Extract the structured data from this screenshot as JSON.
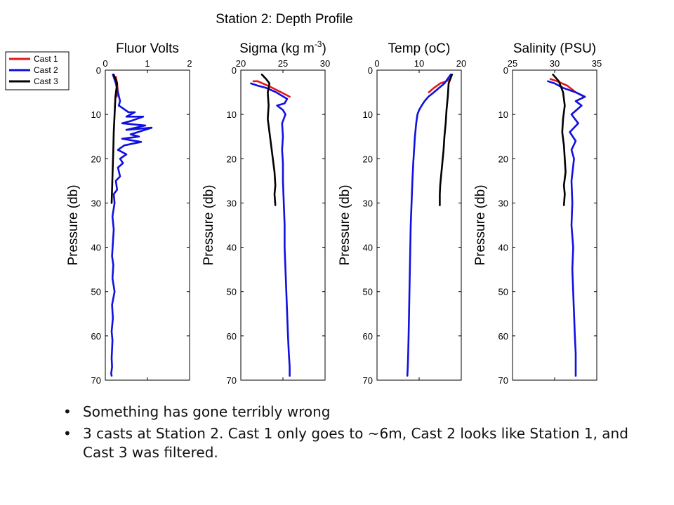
{
  "title": "Station 2: Depth Profile",
  "legend": [
    {
      "name": "Cast 1",
      "color": "#e8141c"
    },
    {
      "name": "Cast 2",
      "color": "#1010e0"
    },
    {
      "name": "Cast 3",
      "color": "#000000"
    }
  ],
  "bullets": [
    "Something has gone terribly wrong",
    "3 casts at Station 2. Cast 1 only goes to ~6m, Cast 2 looks like Station 1, and Cast 3 was filtered."
  ],
  "chart_data": [
    {
      "type": "line",
      "title": "Fluor Volts",
      "ylabel": "Pressure (db)",
      "xlim": [
        0,
        2
      ],
      "xticks": [
        0,
        1,
        2
      ],
      "ylim": [
        0,
        70
      ],
      "yticks": [
        0,
        10,
        20,
        30,
        40,
        50,
        60,
        70
      ],
      "y_inverted": true,
      "x_axis_position": "top",
      "grid": false,
      "series": [
        {
          "name": "Cast 1",
          "color": "#e8141c",
          "x": [
            0.25,
            0.28,
            0.3,
            0.27
          ],
          "y": [
            1.5,
            3,
            5,
            6
          ]
        },
        {
          "name": "Cast 2",
          "color": "#1010e0",
          "x": [
            0.18,
            0.25,
            0.3,
            0.35,
            0.32,
            0.4,
            0.55,
            0.7,
            0.5,
            0.9,
            0.6,
            0.4,
            0.95,
            0.5,
            1.1,
            0.6,
            0.8,
            0.4,
            0.85,
            0.45,
            0.3,
            0.5,
            0.35,
            0.42,
            0.3,
            0.35,
            0.25,
            0.28,
            0.2,
            0.22,
            0.17,
            0.2,
            0.18,
            0.16,
            0.19,
            0.17,
            0.22,
            0.16,
            0.18,
            0.15,
            0.17,
            0.16,
            0.15,
            0.16,
            0.14,
            0.15
          ],
          "y": [
            1,
            3,
            5,
            7,
            8,
            8.5,
            9.5,
            9.5,
            10.5,
            10.5,
            11.5,
            12,
            12.5,
            13.5,
            13,
            14.5,
            15,
            15.5,
            16.2,
            17,
            18,
            19,
            20,
            21,
            22,
            24,
            25,
            27,
            28,
            30,
            33,
            36,
            39,
            42,
            44,
            47,
            50,
            53,
            56,
            59,
            61,
            63,
            65,
            67,
            68.5,
            69
          ]
        },
        {
          "name": "Cast 3",
          "color": "#000000",
          "x": [
            0.2,
            0.28,
            0.24,
            0.22,
            0.2,
            0.19,
            0.18,
            0.17,
            0.16,
            0.15
          ],
          "y": [
            1,
            3,
            6,
            10,
            14,
            18,
            21,
            24,
            27,
            30
          ]
        }
      ]
    },
    {
      "type": "line",
      "title": "Sigma (kg m",
      "title_sup": "-3",
      "title_suffix": ")",
      "ylabel": "Pressure (db)",
      "xlim": [
        20,
        30
      ],
      "xticks": [
        20,
        25,
        30
      ],
      "ylim": [
        0,
        70
      ],
      "yticks": [
        0,
        10,
        20,
        30,
        40,
        50,
        60,
        70
      ],
      "y_inverted": true,
      "x_axis_position": "top",
      "grid": false,
      "series": [
        {
          "name": "Cast 1",
          "color": "#e8141c",
          "x": [
            21.5,
            22.0,
            23.2,
            24.8,
            25.8
          ],
          "y": [
            2.5,
            2.5,
            3.5,
            5,
            6
          ]
        },
        {
          "name": "Cast 2",
          "color": "#1010e0",
          "x": [
            21.2,
            22.0,
            23.0,
            24.2,
            25.5,
            25.2,
            24.3,
            25.0,
            25.3,
            24.9,
            25.0,
            24.9,
            25.0,
            25.0,
            25.1,
            25.2,
            25.2,
            25.3,
            25.4,
            25.5,
            25.6,
            25.7,
            25.8,
            25.8
          ],
          "y": [
            3,
            3.5,
            4,
            5,
            6.5,
            7.5,
            8,
            9,
            10,
            12,
            15,
            18,
            21,
            25,
            30,
            35,
            40,
            45,
            50,
            55,
            60,
            64,
            67,
            69
          ]
        },
        {
          "name": "Cast 3",
          "color": "#000000",
          "x": [
            22.5,
            23.0,
            23.4,
            23.2,
            23.3,
            23.2,
            23.4,
            23.6,
            23.8,
            24.0,
            24.1,
            24.0,
            24.1
          ],
          "y": [
            1,
            2,
            3,
            5,
            8,
            11,
            14,
            17,
            20,
            23,
            26,
            28,
            30.5
          ]
        }
      ]
    },
    {
      "type": "line",
      "title": "Temp (oC)",
      "ylabel": "Pressure (db)",
      "xlim": [
        0,
        20
      ],
      "xticks": [
        0,
        10,
        20
      ],
      "ylim": [
        0,
        70
      ],
      "yticks": [
        0,
        10,
        20,
        30,
        40,
        50,
        60,
        70
      ],
      "y_inverted": true,
      "x_axis_position": "top",
      "grid": false,
      "series": [
        {
          "name": "Cast 1",
          "color": "#e8141c",
          "x": [
            17.2,
            16.5,
            15.0,
            13.5,
            12.3
          ],
          "y": [
            2,
            2.5,
            3,
            4,
            5
          ]
        },
        {
          "name": "Cast 2",
          "color": "#1010e0",
          "x": [
            17.5,
            16.0,
            13.5,
            12.2,
            11.3,
            10.6,
            10.0,
            9.6,
            9.3,
            9.0,
            8.8,
            8.6,
            8.4,
            8.2,
            8.0,
            7.9,
            7.8,
            7.7,
            7.6,
            7.5,
            7.4,
            7.3,
            7.2
          ],
          "y": [
            1,
            3,
            5,
            6,
            7,
            8,
            9,
            10,
            12,
            15,
            18,
            21,
            25,
            30,
            35,
            40,
            45,
            50,
            55,
            60,
            64,
            67,
            69
          ]
        },
        {
          "name": "Cast 3",
          "color": "#000000",
          "x": [
            17.8,
            17.0,
            16.8,
            16.5,
            16.3,
            16.0,
            15.8,
            15.5,
            15.2,
            15.0,
            14.9,
            14.9
          ],
          "y": [
            1,
            3,
            6,
            9,
            12,
            15,
            18,
            21,
            24,
            26,
            28,
            30.5
          ]
        }
      ]
    },
    {
      "type": "line",
      "title": "Salinity (PSU)",
      "ylabel": "Pressure (db)",
      "xlim": [
        25,
        35
      ],
      "xticks": [
        25,
        30,
        35
      ],
      "ylim": [
        0,
        70
      ],
      "yticks": [
        0,
        10,
        20,
        30,
        40,
        50,
        60,
        70
      ],
      "y_inverted": true,
      "x_axis_position": "top",
      "grid": false,
      "series": [
        {
          "name": "Cast 1",
          "color": "#e8141c",
          "x": [
            29.5,
            30.3,
            31.5,
            32.5,
            33.5
          ],
          "y": [
            2,
            2.5,
            3.5,
            5,
            6
          ]
        },
        {
          "name": "Cast 2",
          "color": "#1010e0",
          "x": [
            29.2,
            30.0,
            31.0,
            32.5,
            33.6,
            32.5,
            33.2,
            32.0,
            32.8,
            31.8,
            32.5,
            32.0,
            32.3,
            32.0,
            32.1,
            32.0,
            32.2,
            32.1,
            32.2,
            32.3,
            32.4,
            32.5,
            32.5,
            32.5
          ],
          "y": [
            2.5,
            3,
            4,
            5,
            6,
            7,
            8,
            10,
            12,
            14,
            16,
            18,
            20,
            25,
            30,
            35,
            40,
            45,
            50,
            55,
            60,
            64,
            67,
            69
          ]
        },
        {
          "name": "Cast 3",
          "color": "#000000",
          "x": [
            29.8,
            30.5,
            31.0,
            31.2,
            31.0,
            30.9,
            31.1,
            31.2,
            31.3,
            31.1,
            31.2,
            31.1
          ],
          "y": [
            1,
            2.5,
            5,
            8,
            11,
            14,
            17,
            20,
            23,
            26,
            28,
            30.5
          ]
        }
      ]
    }
  ]
}
